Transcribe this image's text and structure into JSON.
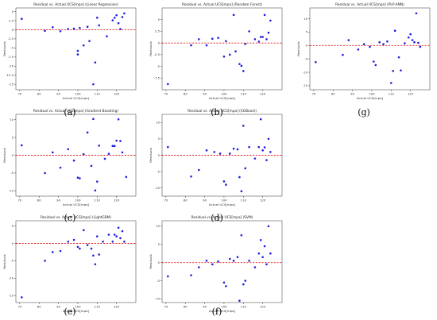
{
  "chart_data": [
    {
      "id": "a",
      "type": "scatter",
      "title": "Residual vs. Actual UCS[mpa] (Linear Regression)",
      "xlabel": "Actual UCS[mpa]",
      "ylabel": "Residuals",
      "xlim": [
        68,
        130
      ],
      "ylim": [
        -16.5,
        6
      ],
      "xticks": [
        70,
        80,
        90,
        100,
        110,
        120
      ],
      "yticks": [
        5,
        2.5,
        0,
        -2.5,
        -5,
        -7.5,
        -10,
        -12.5,
        -15
      ],
      "zero_line": true,
      "points": [
        [
          71,
          3.0
        ],
        [
          83,
          -0.3
        ],
        [
          87,
          0.7
        ],
        [
          91,
          -0.4
        ],
        [
          95,
          0.2
        ],
        [
          98,
          0.3
        ],
        [
          100,
          -5.8
        ],
        [
          100,
          -6.8
        ],
        [
          101,
          0.5
        ],
        [
          103,
          -4.3
        ],
        [
          105,
          0.8
        ],
        [
          106,
          -3.1
        ],
        [
          108,
          -15.0
        ],
        [
          109,
          -9.0
        ],
        [
          110,
          3.3
        ],
        [
          111,
          1.2
        ],
        [
          115,
          -1.8
        ],
        [
          118,
          2.6
        ],
        [
          119,
          3.3
        ],
        [
          120,
          4.0
        ],
        [
          121,
          1.8
        ],
        [
          122,
          0.2
        ],
        [
          123,
          3.5
        ],
        [
          124,
          4.5
        ]
      ]
    },
    {
      "id": "b",
      "type": "scatter",
      "title": "Residual vs. Actual UCS[mpa] (Random Forest)",
      "xlabel": "Actual UCS[mpa]",
      "ylabel": "Residuals",
      "xlim": [
        68,
        130
      ],
      "ylim": [
        -10,
        7.5
      ],
      "xticks": [
        70,
        80,
        90,
        100,
        110,
        120
      ],
      "yticks": [
        5,
        2.5,
        0,
        -2.5,
        -5,
        -7.5
      ],
      "zero_line": true,
      "points": [
        [
          71,
          -8.8
        ],
        [
          83,
          -0.5
        ],
        [
          87,
          0.8
        ],
        [
          91,
          -0.5
        ],
        [
          94,
          0.9
        ],
        [
          97,
          1.1
        ],
        [
          100,
          -2.9
        ],
        [
          101,
          0.4
        ],
        [
          103,
          -2.5
        ],
        [
          105,
          6.0
        ],
        [
          106,
          -1.8
        ],
        [
          108,
          -4.5
        ],
        [
          109,
          -4.9
        ],
        [
          110,
          -6.0
        ],
        [
          111,
          -0.2
        ],
        [
          113,
          2.5
        ],
        [
          116,
          0.8
        ],
        [
          118,
          0.3
        ],
        [
          119,
          1.3
        ],
        [
          120,
          1.3
        ],
        [
          121,
          6.0
        ],
        [
          122,
          0.8
        ],
        [
          123,
          2.2
        ],
        [
          124,
          4.8
        ]
      ]
    },
    {
      "id": "g",
      "type": "scatter",
      "title": "Residual vs. Actual UCS[mpa] (PLP-ANN)",
      "xlabel": "Actual UCS[mpa]",
      "ylabel": "Residuals",
      "xlim": [
        68,
        130
      ],
      "ylim": [
        -16.5,
        14
      ],
      "xticks": [
        70,
        80,
        90,
        100,
        110,
        120
      ],
      "yticks": [
        10,
        5,
        0,
        -5,
        -10,
        -15
      ],
      "zero_line": true,
      "points": [
        [
          71,
          -6.2
        ],
        [
          85,
          -3.5
        ],
        [
          88,
          2.0
        ],
        [
          93,
          -1.5
        ],
        [
          96,
          0.5
        ],
        [
          99,
          -0.5
        ],
        [
          101,
          -6.0
        ],
        [
          102,
          -7.3
        ],
        [
          104,
          1.2
        ],
        [
          106,
          0.5
        ],
        [
          108,
          1.5
        ],
        [
          110,
          -14.0
        ],
        [
          111,
          -9.5
        ],
        [
          112,
          5.5
        ],
        [
          114,
          -4.4
        ],
        [
          115,
          -9.3
        ],
        [
          117,
          0.8
        ],
        [
          119,
          3.0
        ],
        [
          120,
          4.2
        ],
        [
          121,
          2.0
        ],
        [
          122,
          1.2
        ],
        [
          123,
          12.0
        ],
        [
          124,
          1.0
        ],
        [
          125,
          -0.5
        ]
      ]
    },
    {
      "id": "c",
      "type": "scatter",
      "title": "Residual vs. Actual UCS[mpa] (Gradient Boosting)",
      "xlabel": "Actual UCS[mpa]",
      "ylabel": "Residuals",
      "xlim": [
        68,
        130
      ],
      "ylim": [
        -11.5,
        11.5
      ],
      "xticks": [
        70,
        80,
        90,
        100,
        110,
        120
      ],
      "yticks": [
        10,
        5,
        0,
        -5,
        -10
      ],
      "zero_line": true,
      "points": [
        [
          71,
          2.8
        ],
        [
          83,
          -5.0
        ],
        [
          87,
          0.8
        ],
        [
          91,
          -3.5
        ],
        [
          95,
          1.7
        ],
        [
          98,
          -1.5
        ],
        [
          100,
          -6.3
        ],
        [
          101,
          -6.5
        ],
        [
          103,
          0.3
        ],
        [
          105,
          6.4
        ],
        [
          107,
          -3.0
        ],
        [
          108,
          10.2
        ],
        [
          109,
          -9.9
        ],
        [
          110,
          -7.4
        ],
        [
          111,
          2.7
        ],
        [
          114,
          -1.0
        ],
        [
          116,
          0.4
        ],
        [
          118,
          2.6
        ],
        [
          119,
          2.6
        ],
        [
          120,
          4.1
        ],
        [
          121,
          10.1
        ],
        [
          122,
          4.0
        ],
        [
          123,
          0.8
        ],
        [
          125,
          -6.1
        ]
      ]
    },
    {
      "id": "d",
      "type": "scatter",
      "title": "Residual vs. Actual UCS[mpa] (XGBoost)",
      "xlabel": "Actual UCS[mpa]",
      "ylabel": "Residuals",
      "xlim": [
        68,
        130
      ],
      "ylim": [
        -12.5,
        12.5
      ],
      "xticks": [
        70,
        80,
        90,
        100,
        110,
        120
      ],
      "yticks": [
        10,
        5,
        0,
        -5,
        -10
      ],
      "zero_line": true,
      "points": [
        [
          71,
          2.5
        ],
        [
          83,
          -6.5
        ],
        [
          87,
          -4.5
        ],
        [
          91,
          1.5
        ],
        [
          95,
          1.0
        ],
        [
          98,
          0.5
        ],
        [
          100,
          -8.0
        ],
        [
          101,
          -9.0
        ],
        [
          103,
          0.5
        ],
        [
          105,
          2.0
        ],
        [
          107,
          1.8
        ],
        [
          108,
          -6.7
        ],
        [
          109,
          -11.0
        ],
        [
          110,
          9.0
        ],
        [
          111,
          -4.0
        ],
        [
          113,
          2.5
        ],
        [
          116,
          -1.0
        ],
        [
          118,
          2.5
        ],
        [
          119,
          11.0
        ],
        [
          120,
          1.5
        ],
        [
          121,
          2.4
        ],
        [
          122,
          -1.5
        ],
        [
          123,
          5.0
        ],
        [
          124,
          1.0
        ]
      ]
    },
    {
      "id": "e",
      "type": "scatter",
      "title": "Residual vs. Actual UCS[mpa] (LightGBM)",
      "xlabel": "Actual UCS[mpa]",
      "ylabel": "Residuals",
      "xlim": [
        68,
        130
      ],
      "ylim": [
        -17,
        6.5
      ],
      "xticks": [
        70,
        80,
        90,
        100,
        110,
        120
      ],
      "yticks": [
        5,
        0,
        -5,
        -10,
        -15
      ],
      "zero_line": true,
      "points": [
        [
          71,
          -15.5
        ],
        [
          83,
          -5.0
        ],
        [
          87,
          -2.5
        ],
        [
          91,
          -2.2
        ],
        [
          95,
          0.5
        ],
        [
          98,
          1.0
        ],
        [
          100,
          -1.0
        ],
        [
          101,
          -1.5
        ],
        [
          103,
          3.8
        ],
        [
          105,
          -0.5
        ],
        [
          107,
          -1.5
        ],
        [
          108,
          -3.5
        ],
        [
          109,
          -6.0
        ],
        [
          110,
          2.0
        ],
        [
          111,
          -3.2
        ],
        [
          113,
          0.5
        ],
        [
          116,
          2.5
        ],
        [
          118,
          0.5
        ],
        [
          119,
          2.5
        ],
        [
          120,
          2.0
        ],
        [
          121,
          4.5
        ],
        [
          122,
          1.5
        ],
        [
          123,
          3.5
        ],
        [
          124,
          0.5
        ]
      ]
    },
    {
      "id": "f",
      "type": "scatter",
      "title": "Residual vs. Actual UCS[mpa] (SVM)",
      "xlabel": "Actual UCS[mpa]",
      "ylabel": "Residuals",
      "xlim": [
        68,
        130
      ],
      "ylim": [
        -11,
        11.5
      ],
      "xticks": [
        70,
        80,
        90,
        100,
        110,
        120
      ],
      "yticks": [
        10,
        5,
        0,
        -5,
        -10
      ],
      "zero_line": true,
      "points": [
        [
          71,
          -3.8
        ],
        [
          83,
          -3.5
        ],
        [
          87,
          -1.3
        ],
        [
          91,
          0.5
        ],
        [
          94,
          -0.5
        ],
        [
          97,
          0.3
        ],
        [
          100,
          -5.5
        ],
        [
          101,
          -6.5
        ],
        [
          103,
          1.0
        ],
        [
          105,
          0.5
        ],
        [
          107,
          1.5
        ],
        [
          108,
          -10.5
        ],
        [
          109,
          7.5
        ],
        [
          110,
          -6.0
        ],
        [
          111,
          -5.0
        ],
        [
          113,
          0.5
        ],
        [
          116,
          -1.3
        ],
        [
          118,
          2.5
        ],
        [
          119,
          6.2
        ],
        [
          120,
          1.5
        ],
        [
          121,
          4.5
        ],
        [
          122,
          -0.5
        ],
        [
          123,
          10.0
        ],
        [
          124,
          2.5
        ]
      ]
    }
  ],
  "captions": [
    "(a)",
    "(b)",
    "(g)",
    "(c)",
    "(d)",
    "(e)",
    "(f)"
  ],
  "colors": {
    "points": "#1f1fe0",
    "zero_line": "#e01f1f",
    "axis": "#333333"
  }
}
